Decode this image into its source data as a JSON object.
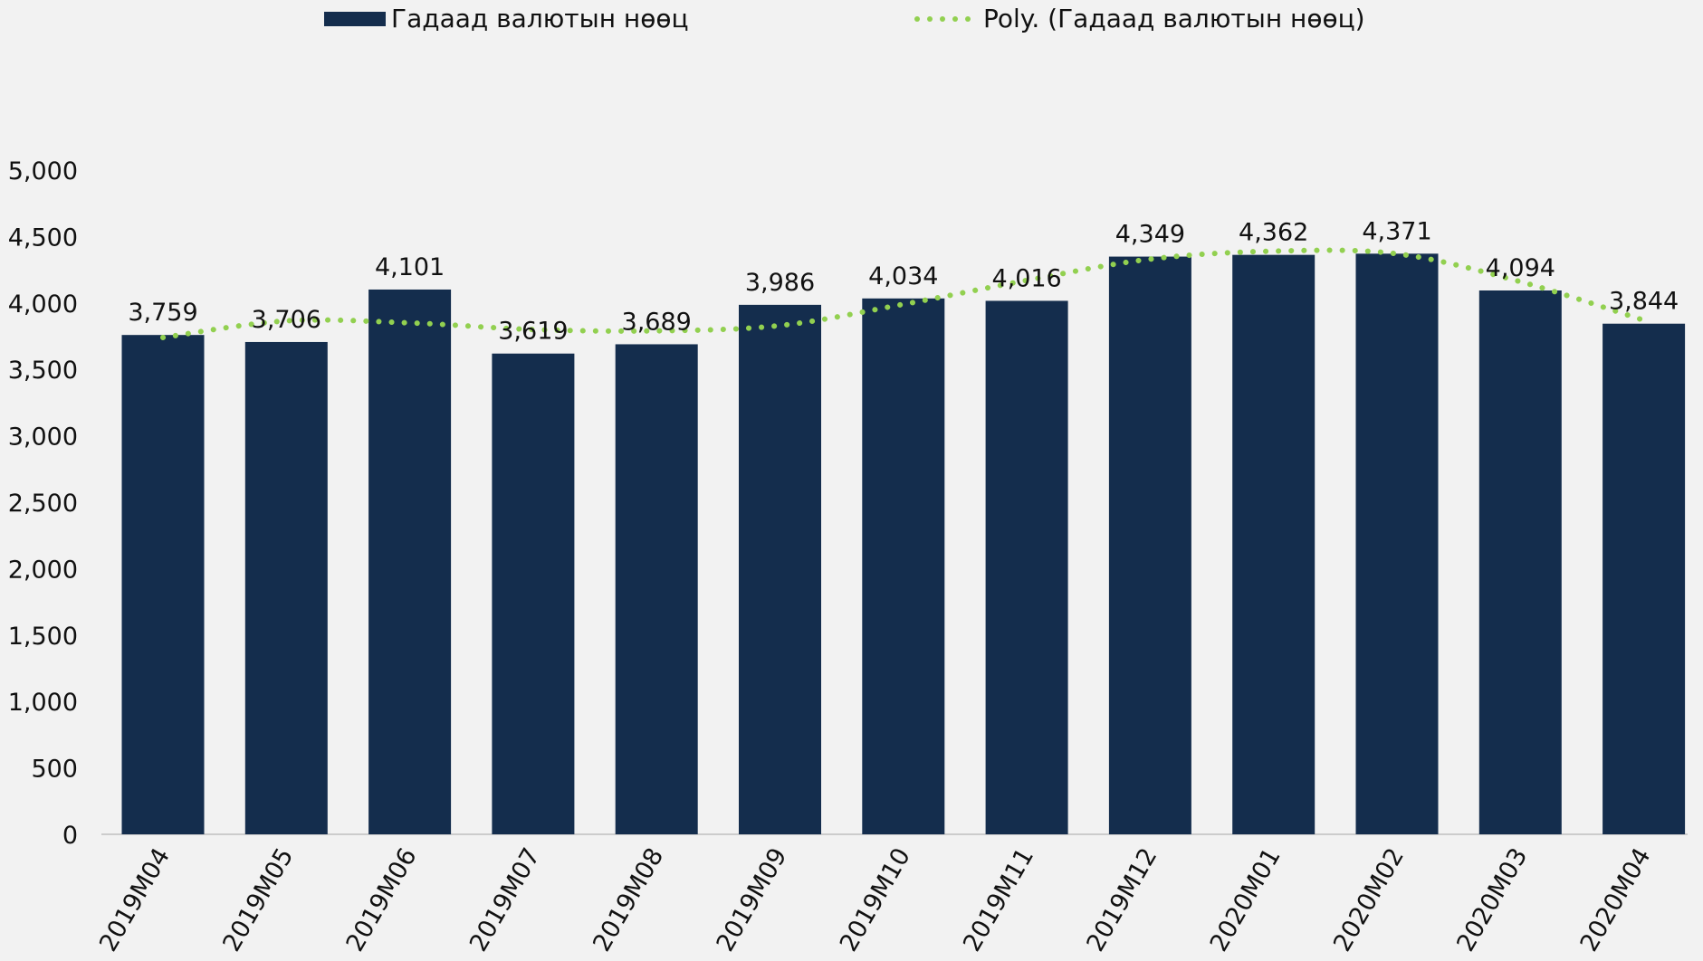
{
  "chart_data": {
    "type": "bar",
    "categories": [
      "2019M04",
      "2019M05",
      "2019M06",
      "2019M07",
      "2019M08",
      "2019M09",
      "2019M10",
      "2019M11",
      "2019M12",
      "2020M01",
      "2020M02",
      "2020M03",
      "2020M04"
    ],
    "series": [
      {
        "name": "Гадаад валютын нөөц",
        "values": [
          3759,
          3706,
          4101,
          3619,
          3689,
          3986,
          4034,
          4016,
          4349,
          4362,
          4371,
          4094,
          3844
        ]
      }
    ],
    "data_labels": [
      "3,759",
      "3,706",
      "4,101",
      "3,619",
      "3,689",
      "3,986",
      "4,034",
      "4,016",
      "4,349",
      "4,362",
      "4,371",
      "4,094",
      "3,844"
    ],
    "trendline": {
      "name": "Poly. (Гадаад валютын нөөц)",
      "type": "polynomial",
      "values": [
        3740,
        3865,
        3850,
        3800,
        3790,
        3830,
        3990,
        4170,
        4330,
        4390,
        4370,
        4160,
        3870
      ]
    },
    "y_ticks": [
      "0",
      "500",
      "1,000",
      "1,500",
      "2,000",
      "2,500",
      "3,000",
      "3,500",
      "4,000",
      "4,500",
      "5,000"
    ],
    "ylim": [
      0,
      5000
    ],
    "title": "",
    "xlabel": "",
    "ylabel": "",
    "legend_position": "top",
    "grid": false,
    "colors": {
      "bar": "#142d4d",
      "trend": "#92d050",
      "background": "#f2f2f2"
    }
  }
}
